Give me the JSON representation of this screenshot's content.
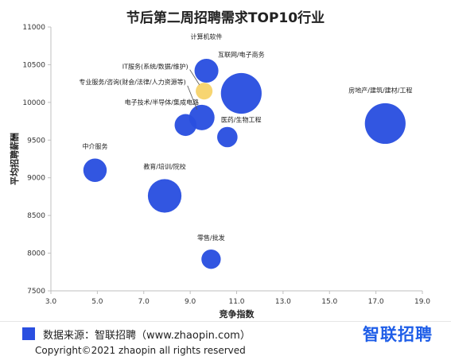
{
  "chart_data": {
    "type": "bubble",
    "title": "节后第二周招聘需求TOP10行业",
    "xlabel": "竞争指数",
    "ylabel": "平均招聘薪酬",
    "xlim": [
      3.0,
      19.0
    ],
    "ylim": [
      7500,
      11000
    ],
    "xticks": [
      "3.0",
      "5.0",
      "7.0",
      "9.0",
      "11.0",
      "13.0",
      "15.0",
      "17.0",
      "19.0"
    ],
    "yticks": [
      "7500",
      "8000",
      "8500",
      "9000",
      "9500",
      "10000",
      "10500",
      "11000"
    ],
    "grid": false,
    "colors": {
      "primary": "#2a4fe0",
      "highlight": "#f7d36b"
    },
    "points": [
      {
        "label": "计算机软件",
        "x": 9.7,
        "y": 10420,
        "size": 0.47,
        "color": "#2a4fe0"
      },
      {
        "label": "互联网/电子商务",
        "x": 11.2,
        "y": 10120,
        "size": 0.8,
        "color": "#2a4fe0"
      },
      {
        "label": "IT服务(系统/数据/维护)",
        "x": 9.6,
        "y": 10150,
        "size": 0.33,
        "color": "#f7d36b"
      },
      {
        "label": "专业服务/咨询(财会/法律/人力资源等)",
        "x": 9.5,
        "y": 9800,
        "size": 0.5,
        "color": "#2a4fe0"
      },
      {
        "label": "电子技术/半导体/集成电路",
        "x": 8.8,
        "y": 9700,
        "size": 0.43,
        "color": "#2a4fe0"
      },
      {
        "label": "医药/生物工程",
        "x": 10.6,
        "y": 9540,
        "size": 0.4,
        "color": "#2a4fe0"
      },
      {
        "label": "房地产/建筑/建材/工程",
        "x": 17.4,
        "y": 9720,
        "size": 0.8,
        "color": "#2a4fe0"
      },
      {
        "label": "中介服务",
        "x": 4.9,
        "y": 9100,
        "size": 0.46,
        "color": "#2a4fe0"
      },
      {
        "label": "教育/培训/院校",
        "x": 7.9,
        "y": 8760,
        "size": 0.66,
        "color": "#2a4fe0"
      },
      {
        "label": "零售/批发",
        "x": 9.9,
        "y": 7920,
        "size": 0.38,
        "color": "#2a4fe0"
      }
    ]
  },
  "footer": {
    "source": "数据来源：智联招聘（www.zhaopin.com）",
    "brand": "智联招聘",
    "copyright": "Copyright©2021 zhaopin all rights reserved"
  }
}
